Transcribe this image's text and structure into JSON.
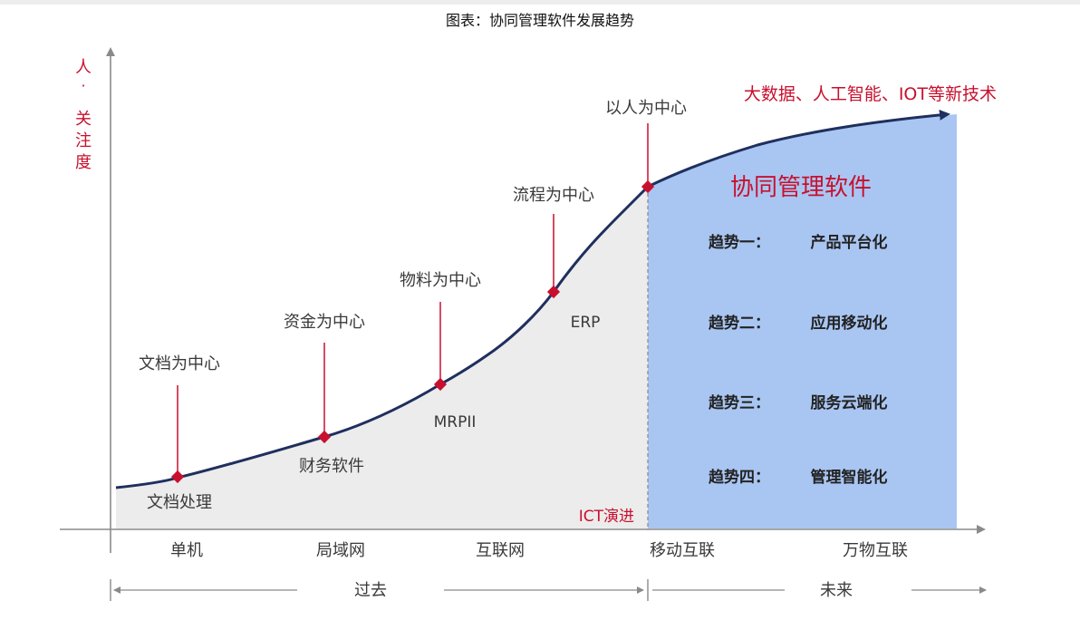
{
  "caption": "图表：协同管理软件发展趋势",
  "y_axis_label": [
    "人",
    "·",
    "关",
    "注",
    "度"
  ],
  "stages": [
    {
      "label": "文档为中心",
      "product": "文档处理"
    },
    {
      "label": "资金为中心",
      "product": "财务软件"
    },
    {
      "label": "物料为中心",
      "product": "MRPII"
    },
    {
      "label": "流程为中心",
      "product": "ERP"
    },
    {
      "label": "以人为中心",
      "product": ""
    }
  ],
  "eras": [
    "单机",
    "局域网",
    "互联网",
    "移动互联",
    "万物互联"
  ],
  "ict_label": "ICT演进",
  "future_tech": "大数据、人工智能、IOT等新技术",
  "future_title": "协同管理软件",
  "trends": [
    {
      "key": "趋势一：",
      "value": "产品平台化"
    },
    {
      "key": "趋势二：",
      "value": "应用移动化"
    },
    {
      "key": "趋势三：",
      "value": "服务云端化"
    },
    {
      "key": "趋势四：",
      "value": "管理智能化"
    }
  ],
  "timeline": {
    "past": "过去",
    "future": "未来"
  },
  "colors": {
    "red": "#c8102e",
    "curve": "#1f2f5e",
    "future_fill": "#a9c6f2",
    "past_fill": "#ececec",
    "axis": "#8a8a8a"
  }
}
